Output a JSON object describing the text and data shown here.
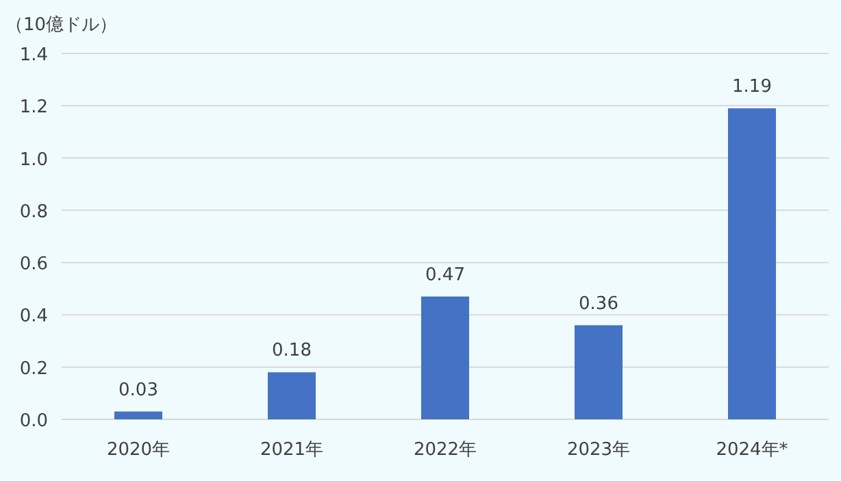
{
  "chart_data": {
    "type": "bar",
    "ylabel": "（10億ドル）",
    "categories": [
      "2020年",
      "2021年",
      "2022年",
      "2023年",
      "2024年*"
    ],
    "values": [
      0.03,
      0.18,
      0.47,
      0.36,
      1.19
    ],
    "color": "#4472c4",
    "ylim": [
      0,
      1.4
    ],
    "yticks": [
      {
        "value": 0,
        "label": "0.0"
      },
      {
        "value": 0.2,
        "label": "0.2"
      },
      {
        "value": 0.4,
        "label": "0.4"
      },
      {
        "value": 0.6,
        "label": "0.6"
      },
      {
        "value": 0.8,
        "label": "0.8"
      },
      {
        "value": 1,
        "label": "1.0"
      },
      {
        "value": 1.2,
        "label": "1.2"
      },
      {
        "value": 1.4,
        "label": "1.4"
      }
    ],
    "grid": "y",
    "data_labels": true
  }
}
